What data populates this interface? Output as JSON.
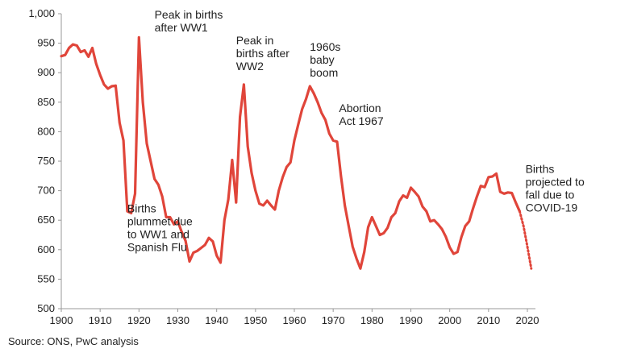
{
  "chart_data": {
    "type": "line",
    "title": "",
    "xlabel": "",
    "ylabel": "",
    "xlim": [
      1900,
      2020
    ],
    "ylim": [
      500,
      1000
    ],
    "x_ticks": [
      "1900",
      "1910",
      "1920",
      "1930",
      "1940",
      "1950",
      "1960",
      "1970",
      "1980",
      "1990",
      "2000",
      "2010",
      "2020"
    ],
    "y_ticks": [
      "500",
      "550",
      "600",
      "650",
      "700",
      "750",
      "800",
      "850",
      "900",
      "950",
      "1,000"
    ],
    "grid": false,
    "series": [
      {
        "color": "#e0453a",
        "style": "solid",
        "points": [
          [
            1900,
            928
          ],
          [
            1901,
            930
          ],
          [
            1902,
            942
          ],
          [
            1903,
            948
          ],
          [
            1904,
            946
          ],
          [
            1905,
            935
          ],
          [
            1906,
            938
          ],
          [
            1907,
            927
          ],
          [
            1908,
            942
          ],
          [
            1909,
            915
          ],
          [
            1910,
            896
          ],
          [
            1911,
            880
          ],
          [
            1912,
            873
          ],
          [
            1913,
            877
          ],
          [
            1914,
            878
          ],
          [
            1915,
            815
          ],
          [
            1916,
            785
          ],
          [
            1917,
            665
          ],
          [
            1918,
            662
          ],
          [
            1919,
            695
          ],
          [
            1920,
            960
          ],
          [
            1921,
            850
          ],
          [
            1922,
            780
          ],
          [
            1923,
            750
          ],
          [
            1924,
            720
          ],
          [
            1925,
            710
          ],
          [
            1926,
            690
          ],
          [
            1927,
            655
          ],
          [
            1928,
            655
          ],
          [
            1929,
            643
          ],
          [
            1930,
            648
          ],
          [
            1931,
            630
          ],
          [
            1932,
            615
          ],
          [
            1933,
            580
          ],
          [
            1934,
            595
          ],
          [
            1935,
            598
          ],
          [
            1936,
            603
          ],
          [
            1937,
            608
          ],
          [
            1938,
            620
          ],
          [
            1939,
            614
          ],
          [
            1940,
            590
          ],
          [
            1941,
            578
          ],
          [
            1942,
            650
          ],
          [
            1943,
            685
          ],
          [
            1944,
            752
          ],
          [
            1945,
            680
          ],
          [
            1946,
            825
          ],
          [
            1947,
            880
          ],
          [
            1948,
            775
          ],
          [
            1949,
            730
          ],
          [
            1950,
            700
          ],
          [
            1951,
            678
          ],
          [
            1952,
            675
          ],
          [
            1953,
            683
          ],
          [
            1954,
            675
          ],
          [
            1955,
            668
          ],
          [
            1956,
            700
          ],
          [
            1957,
            723
          ],
          [
            1958,
            740
          ],
          [
            1959,
            748
          ],
          [
            1960,
            785
          ],
          [
            1961,
            812
          ],
          [
            1962,
            838
          ],
          [
            1963,
            855
          ],
          [
            1964,
            877
          ],
          [
            1965,
            865
          ],
          [
            1966,
            850
          ],
          [
            1967,
            832
          ],
          [
            1968,
            820
          ],
          [
            1969,
            797
          ],
          [
            1970,
            785
          ],
          [
            1971,
            783
          ],
          [
            1972,
            725
          ],
          [
            1973,
            675
          ],
          [
            1974,
            640
          ],
          [
            1975,
            605
          ],
          [
            1976,
            585
          ],
          [
            1977,
            568
          ],
          [
            1978,
            596
          ],
          [
            1979,
            638
          ],
          [
            1980,
            655
          ],
          [
            1981,
            640
          ],
          [
            1982,
            625
          ],
          [
            1983,
            628
          ],
          [
            1984,
            637
          ],
          [
            1985,
            655
          ],
          [
            1986,
            662
          ],
          [
            1987,
            682
          ],
          [
            1988,
            692
          ],
          [
            1989,
            688
          ],
          [
            1990,
            705
          ],
          [
            1991,
            698
          ],
          [
            1992,
            690
          ],
          [
            1993,
            673
          ],
          [
            1994,
            665
          ],
          [
            1995,
            648
          ],
          [
            1996,
            650
          ],
          [
            1997,
            643
          ],
          [
            1998,
            635
          ],
          [
            1999,
            622
          ],
          [
            2000,
            604
          ],
          [
            2001,
            593
          ],
          [
            2002,
            596
          ],
          [
            2003,
            621
          ],
          [
            2004,
            640
          ],
          [
            2005,
            648
          ],
          [
            2006,
            670
          ],
          [
            2007,
            690
          ],
          [
            2008,
            708
          ],
          [
            2009,
            706
          ],
          [
            2010,
            723
          ],
          [
            2011,
            724
          ],
          [
            2012,
            729
          ],
          [
            2013,
            698
          ],
          [
            2014,
            695
          ],
          [
            2015,
            697
          ],
          [
            2016,
            696
          ],
          [
            2017,
            680
          ],
          [
            2018,
            665
          ]
        ]
      },
      {
        "color": "#e0453a",
        "style": "dotted",
        "points": [
          [
            2018,
            665
          ],
          [
            2019,
            640
          ],
          [
            2020,
            605
          ],
          [
            2021,
            568
          ]
        ]
      }
    ],
    "annotations": [
      {
        "lines": [
          "Peak in births",
          "after WW1"
        ],
        "x": 1924,
        "y": 992
      },
      {
        "lines": [
          "Peak in",
          "births after",
          "WW2"
        ],
        "x": 1945,
        "y": 948
      },
      {
        "lines": [
          "1960s",
          "baby",
          "boom"
        ],
        "x": 1964,
        "y": 937
      },
      {
        "lines": [
          "Abortion",
          "Act 1967"
        ],
        "x": 1971.5,
        "y": 833
      },
      {
        "lines": [
          "Births",
          "plummet due",
          "to WW1 and",
          "Spanish Flu"
        ],
        "x": 1917,
        "y": 663
      },
      {
        "lines": [
          "Births",
          "projected to",
          "fall due to",
          "COVID-19"
        ],
        "x": 2019.5,
        "y": 730
      }
    ]
  },
  "footer": {
    "source": "Source: ONS, PwC analysis"
  }
}
